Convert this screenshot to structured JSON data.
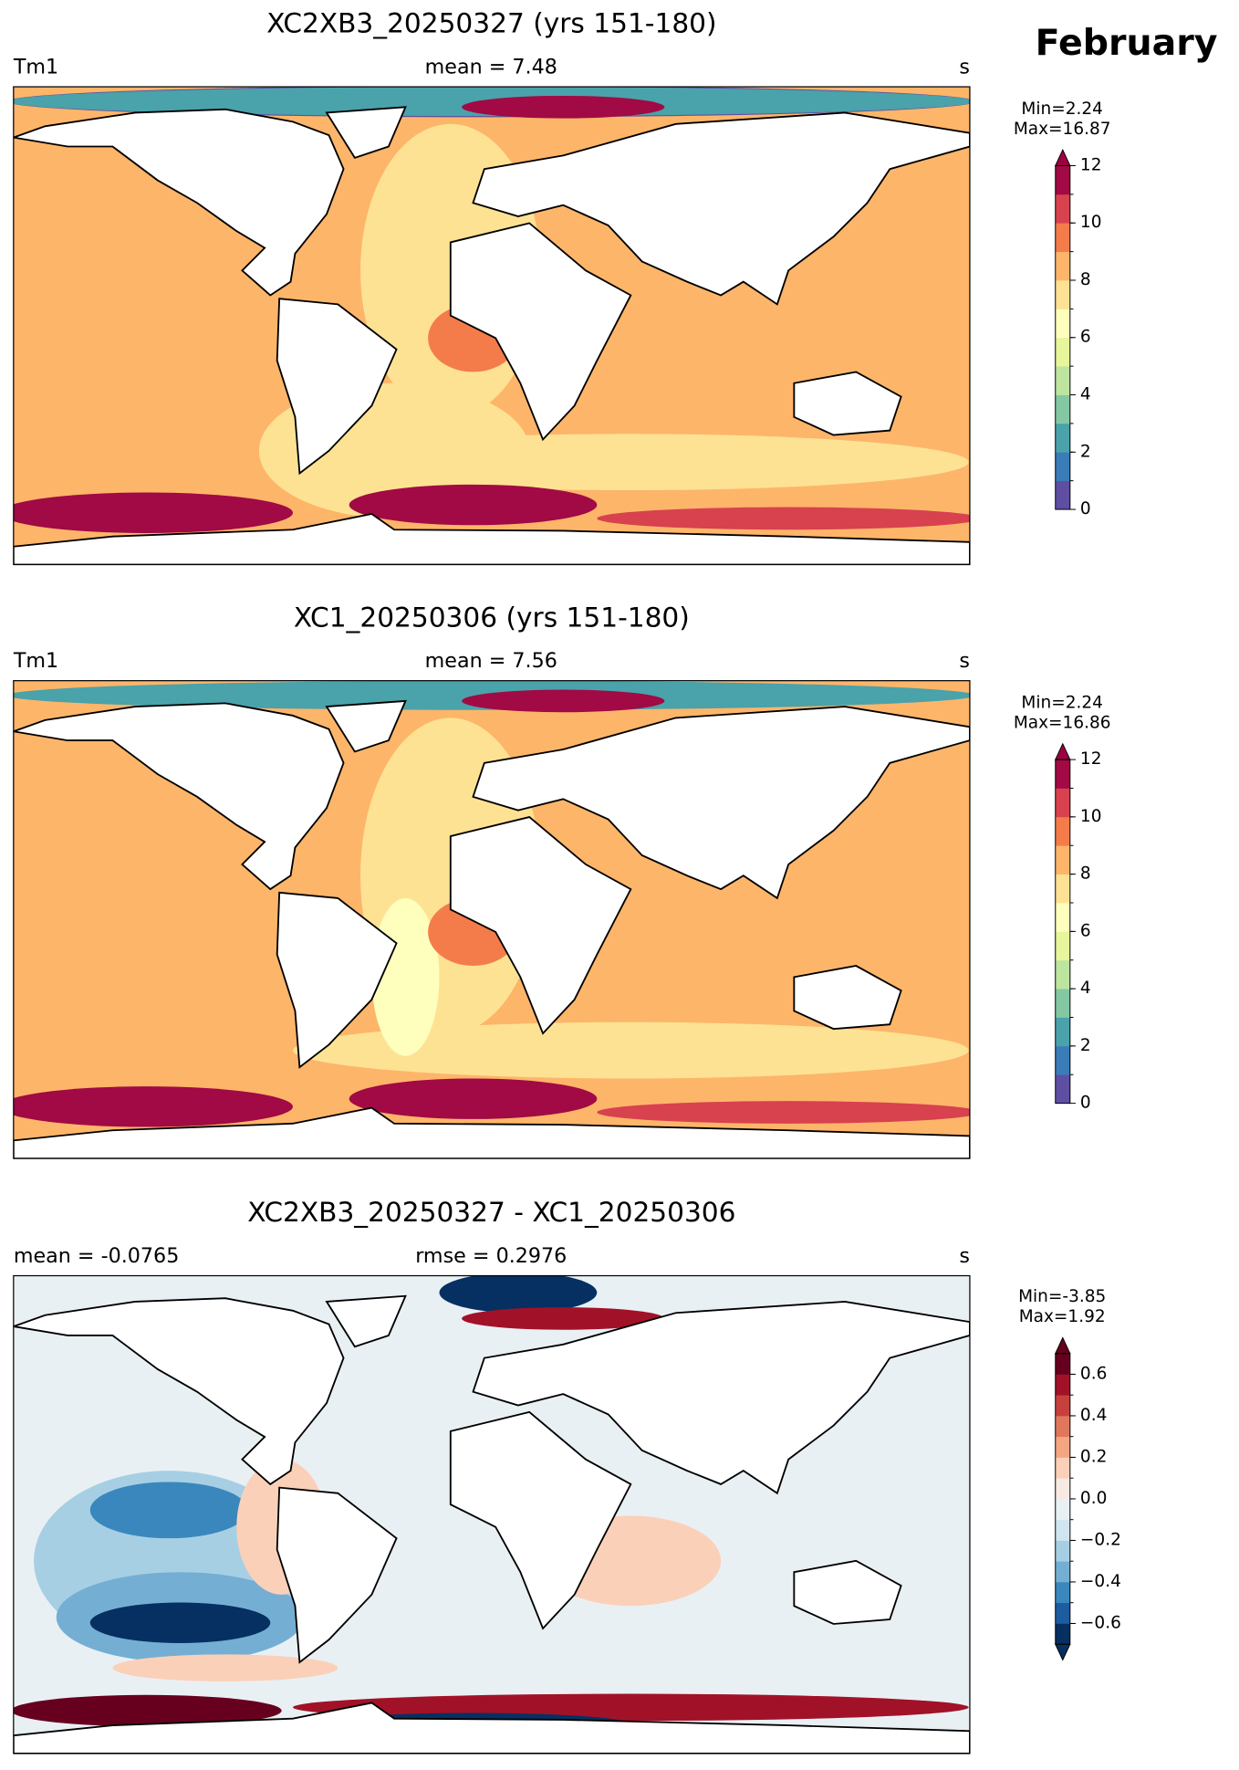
{
  "title": "February",
  "panels": [
    {
      "title": "XC2XB3_20250327 (yrs 151-180)",
      "left_label": "Tm1",
      "center_label": "mean = 7.48",
      "right_label": "s",
      "min_label": "Min=2.24",
      "max_label": "Max=16.87",
      "colorbar": {
        "lim": [
          0,
          12
        ],
        "ticks": [
          0,
          2,
          4,
          6,
          8,
          10,
          12
        ],
        "extend": "max",
        "colors": [
          "#5e4fa2",
          "#3a7cb8",
          "#4aa2aa",
          "#84c8a3",
          "#bde5a0",
          "#e7f59b",
          "#fefebd",
          "#fee293",
          "#fdb56a",
          "#f47c4b",
          "#d7424e",
          "#a10a44"
        ],
        "over_color": "#9e0142"
      }
    },
    {
      "title": "XC1_20250306 (yrs 151-180)",
      "left_label": "Tm1",
      "center_label": "mean = 7.56",
      "right_label": "s",
      "min_label": "Min=2.24",
      "max_label": "Max=16.86",
      "colorbar": {
        "lim": [
          0,
          12
        ],
        "ticks": [
          0,
          2,
          4,
          6,
          8,
          10,
          12
        ],
        "extend": "max",
        "colors": [
          "#5e4fa2",
          "#3a7cb8",
          "#4aa2aa",
          "#84c8a3",
          "#bde5a0",
          "#e7f59b",
          "#fefebd",
          "#fee293",
          "#fdb56a",
          "#f47c4b",
          "#d7424e",
          "#a10a44"
        ],
        "over_color": "#9e0142"
      }
    },
    {
      "title": "XC2XB3_20250327 - XC1_20250306",
      "left_label": "mean = -0.0765",
      "center_label": "rmse = 0.2976",
      "right_label": "s",
      "min_label": "Min=-3.85",
      "max_label": "Max=1.92",
      "colorbar": {
        "lim": [
          -0.7,
          0.7
        ],
        "ticks": [
          {
            "value": -0.6,
            "label": "−0.6"
          },
          {
            "value": -0.4,
            "label": "−0.4"
          },
          {
            "value": -0.2,
            "label": "−0.2"
          },
          {
            "value": 0,
            "label": "0.0"
          },
          0.2,
          0.4,
          0.6
        ],
        "extend": "both",
        "colors": [
          "#053061",
          "#1c5c9f",
          "#3a87bd",
          "#74afd3",
          "#a7cfe4",
          "#d1e5f0",
          "#e9f0f4",
          "#f8e9e2",
          "#fbd0b9",
          "#f4a582",
          "#e0775d",
          "#c6413e",
          "#a11228",
          "#67001f"
        ],
        "under_color": "#053061",
        "over_color": "#67001f"
      }
    }
  ]
}
